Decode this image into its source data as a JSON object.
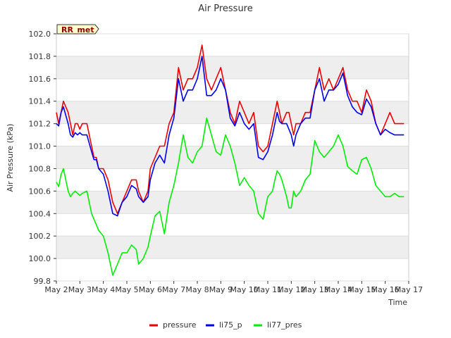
{
  "chart_data": {
    "type": "line",
    "title": "Air Pressure",
    "xlabel": "Time",
    "ylabel": "Air Pressure (kPa)",
    "badge": "RR_met",
    "ylim": [
      99.8,
      102.0
    ],
    "xlim": [
      0,
      15
    ],
    "x_ticks": [
      0,
      1,
      2,
      3,
      4,
      5,
      6,
      7,
      8,
      9,
      10,
      11,
      12,
      13,
      14,
      15
    ],
    "x_tick_labels": [
      "May 2",
      "May 3",
      "May 4",
      "May 5",
      "May 6",
      "May 7",
      "May 8",
      "May 9",
      "May 10",
      "May 11",
      "May 12",
      "May 13",
      "May 14",
      "May 15",
      "May 16",
      "May 17"
    ],
    "y_ticks": [
      99.8,
      100.0,
      100.2,
      100.4,
      100.6,
      100.8,
      101.0,
      101.2,
      101.4,
      101.6,
      101.8,
      102.0
    ],
    "y_tick_labels": [
      "99.8",
      "100.0",
      "100.2",
      "100.4",
      "100.6",
      "100.8",
      "101.0",
      "101.2",
      "101.4",
      "101.6",
      "101.8",
      "102.0"
    ],
    "series": [
      {
        "name": "pressure",
        "color": "#ee0000",
        "x": [
          0.0,
          0.1,
          0.2,
          0.3,
          0.5,
          0.6,
          0.7,
          0.8,
          0.9,
          1.0,
          1.1,
          1.3,
          1.5,
          1.6,
          1.7,
          1.8,
          2.0,
          2.2,
          2.4,
          2.6,
          2.8,
          3.0,
          3.2,
          3.4,
          3.5,
          3.7,
          3.9,
          4.0,
          4.2,
          4.4,
          4.6,
          4.8,
          5.0,
          5.2,
          5.4,
          5.6,
          5.8,
          6.0,
          6.2,
          6.4,
          6.6,
          6.8,
          7.0,
          7.2,
          7.4,
          7.6,
          7.8,
          8.0,
          8.2,
          8.4,
          8.6,
          8.8,
          9.0,
          9.2,
          9.3,
          9.4,
          9.5,
          9.6,
          9.8,
          9.9,
          10.0,
          10.1,
          10.2,
          10.4,
          10.6,
          10.8,
          11.0,
          11.2,
          11.4,
          11.6,
          11.8,
          12.0,
          12.2,
          12.4,
          12.6,
          12.8,
          13.0,
          13.2,
          13.4,
          13.6,
          13.8,
          14.0,
          14.2,
          14.4,
          14.6,
          14.8
        ],
        "values": [
          101.3,
          101.2,
          101.3,
          101.4,
          101.3,
          101.2,
          101.1,
          101.2,
          101.2,
          101.15,
          101.2,
          101.2,
          101.0,
          100.9,
          100.9,
          100.8,
          100.8,
          100.7,
          100.5,
          100.4,
          100.5,
          100.6,
          100.7,
          100.7,
          100.6,
          100.5,
          100.6,
          100.8,
          100.9,
          101.0,
          101.0,
          101.2,
          101.3,
          101.7,
          101.5,
          101.6,
          101.6,
          101.7,
          101.9,
          101.6,
          101.5,
          101.6,
          101.7,
          101.5,
          101.3,
          101.2,
          101.4,
          101.3,
          101.2,
          101.3,
          101.0,
          100.95,
          101.0,
          101.2,
          101.3,
          101.4,
          101.3,
          101.2,
          101.3,
          101.3,
          101.2,
          101.1,
          101.2,
          101.2,
          101.3,
          101.3,
          101.5,
          101.7,
          101.5,
          101.6,
          101.5,
          101.6,
          101.7,
          101.5,
          101.4,
          101.4,
          101.3,
          101.5,
          101.4,
          101.2,
          101.1,
          101.2,
          101.3,
          101.2,
          101.2,
          101.2
        ]
      },
      {
        "name": "li75_p",
        "color": "#0000ee",
        "x": [
          0.0,
          0.1,
          0.2,
          0.3,
          0.5,
          0.6,
          0.7,
          0.8,
          0.9,
          1.0,
          1.1,
          1.3,
          1.5,
          1.6,
          1.7,
          1.8,
          2.0,
          2.2,
          2.4,
          2.6,
          2.8,
          3.0,
          3.2,
          3.4,
          3.5,
          3.7,
          3.9,
          4.0,
          4.2,
          4.4,
          4.6,
          4.8,
          5.0,
          5.2,
          5.4,
          5.6,
          5.8,
          6.0,
          6.2,
          6.4,
          6.6,
          6.8,
          7.0,
          7.2,
          7.4,
          7.6,
          7.8,
          8.0,
          8.2,
          8.4,
          8.6,
          8.8,
          9.0,
          9.2,
          9.3,
          9.4,
          9.5,
          9.6,
          9.8,
          9.9,
          10.0,
          10.1,
          10.2,
          10.4,
          10.6,
          10.8,
          11.0,
          11.2,
          11.4,
          11.6,
          11.8,
          12.0,
          12.2,
          12.4,
          12.6,
          12.8,
          13.0,
          13.2,
          13.4,
          13.6,
          13.8,
          14.0,
          14.2,
          14.4,
          14.6,
          14.8
        ],
        "values": [
          101.2,
          101.18,
          101.3,
          101.35,
          101.2,
          101.1,
          101.08,
          101.12,
          101.1,
          101.12,
          101.1,
          101.1,
          100.95,
          100.88,
          100.88,
          100.8,
          100.75,
          100.6,
          100.4,
          100.38,
          100.5,
          100.55,
          100.65,
          100.62,
          100.55,
          100.5,
          100.55,
          100.7,
          100.85,
          100.92,
          100.85,
          101.1,
          101.25,
          101.6,
          101.4,
          101.5,
          101.5,
          101.6,
          101.8,
          101.45,
          101.45,
          101.5,
          101.6,
          101.5,
          101.25,
          101.18,
          101.3,
          101.2,
          101.15,
          101.2,
          100.9,
          100.88,
          100.95,
          101.1,
          101.2,
          101.3,
          101.22,
          101.2,
          101.2,
          101.15,
          101.1,
          101.0,
          101.1,
          101.2,
          101.25,
          101.25,
          101.5,
          101.6,
          101.4,
          101.5,
          101.5,
          101.55,
          101.65,
          101.45,
          101.35,
          101.3,
          101.28,
          101.42,
          101.35,
          101.2,
          101.1,
          101.15,
          101.12,
          101.1,
          101.1,
          101.1
        ]
      },
      {
        "name": "li77_pres",
        "color": "#00ee00",
        "x": [
          0.0,
          0.1,
          0.2,
          0.3,
          0.5,
          0.6,
          0.7,
          0.8,
          0.9,
          1.0,
          1.1,
          1.3,
          1.5,
          1.6,
          1.7,
          1.8,
          2.0,
          2.2,
          2.4,
          2.6,
          2.8,
          3.0,
          3.2,
          3.4,
          3.5,
          3.7,
          3.9,
          4.0,
          4.2,
          4.4,
          4.6,
          4.8,
          5.0,
          5.2,
          5.4,
          5.6,
          5.8,
          6.0,
          6.2,
          6.4,
          6.6,
          6.8,
          7.0,
          7.2,
          7.4,
          7.6,
          7.8,
          8.0,
          8.2,
          8.4,
          8.6,
          8.8,
          9.0,
          9.2,
          9.3,
          9.4,
          9.5,
          9.6,
          9.8,
          9.9,
          10.0,
          10.1,
          10.2,
          10.4,
          10.6,
          10.8,
          11.0,
          11.2,
          11.4,
          11.6,
          11.8,
          12.0,
          12.2,
          12.4,
          12.6,
          12.8,
          13.0,
          13.2,
          13.4,
          13.6,
          13.8,
          14.0,
          14.2,
          14.4,
          14.6,
          14.8
        ],
        "values": [
          100.68,
          100.64,
          100.75,
          100.8,
          100.6,
          100.55,
          100.58,
          100.6,
          100.58,
          100.56,
          100.58,
          100.6,
          100.4,
          100.35,
          100.3,
          100.25,
          100.2,
          100.05,
          99.85,
          99.95,
          100.05,
          100.05,
          100.12,
          100.08,
          99.95,
          100.0,
          100.1,
          100.2,
          100.38,
          100.42,
          100.22,
          100.5,
          100.65,
          100.85,
          101.1,
          100.9,
          100.85,
          100.95,
          101.0,
          101.25,
          101.1,
          100.95,
          100.92,
          101.1,
          101.0,
          100.85,
          100.65,
          100.72,
          100.65,
          100.6,
          100.4,
          100.35,
          100.55,
          100.6,
          100.7,
          100.78,
          100.75,
          100.7,
          100.55,
          100.45,
          100.45,
          100.6,
          100.55,
          100.6,
          100.7,
          100.75,
          101.05,
          100.95,
          100.9,
          100.95,
          101.0,
          101.1,
          101.0,
          100.82,
          100.78,
          100.75,
          100.88,
          100.9,
          100.8,
          100.65,
          100.6,
          100.55,
          100.55,
          100.58,
          100.55,
          100.55
        ]
      }
    ],
    "legend": [
      "pressure",
      "li75_p",
      "li77_pres"
    ],
    "legend_position": "bottom-center",
    "grid": true,
    "band_color": "#eeeeee",
    "plot_background": "#ffffff"
  }
}
